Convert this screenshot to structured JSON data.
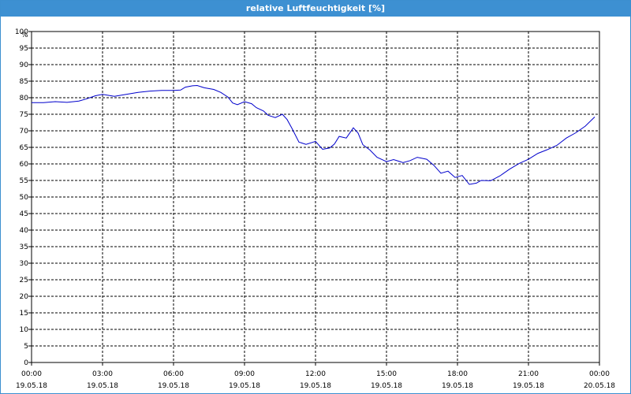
{
  "window": {
    "title": "relative Luftfeuchtigkeit [%]"
  },
  "chart_data": {
    "type": "line",
    "title": "relative Luftfeuchtigkeit [%]",
    "ylabel": "%",
    "xlabel": "",
    "ylim": [
      0,
      100
    ],
    "xlim": [
      0,
      24
    ],
    "y_ticks": [
      0,
      5,
      10,
      15,
      20,
      25,
      30,
      35,
      40,
      45,
      50,
      55,
      60,
      65,
      70,
      75,
      80,
      85,
      90,
      95,
      100
    ],
    "x_ticks": [
      {
        "x": 0,
        "time": "00:00",
        "date": "19.05.18"
      },
      {
        "x": 3,
        "time": "03:00",
        "date": "19.05.18"
      },
      {
        "x": 6,
        "time": "06:00",
        "date": "19.05.18"
      },
      {
        "x": 9,
        "time": "09:00",
        "date": "19.05.18"
      },
      {
        "x": 12,
        "time": "12:00",
        "date": "19.05.18"
      },
      {
        "x": 15,
        "time": "15:00",
        "date": "19.05.18"
      },
      {
        "x": 18,
        "time": "18:00",
        "date": "19.05.18"
      },
      {
        "x": 21,
        "time": "21:00",
        "date": "19.05.18"
      },
      {
        "x": 24,
        "time": "00:00",
        "date": "20.05.18"
      }
    ],
    "grid": true,
    "line_color": "#0000cc",
    "series": [
      {
        "x": [
          0,
          0.5,
          1,
          1.5,
          2,
          2.3,
          2.7,
          3,
          3.5,
          4,
          4.5,
          5,
          5.5,
          6,
          6.3,
          6.5,
          6.8,
          7,
          7.3,
          7.7,
          8,
          8.3,
          8.5,
          8.7,
          9,
          9.3,
          9.5,
          9.8,
          10,
          10.3,
          10.6,
          10.8,
          11,
          11.3,
          11.6,
          12,
          12.3,
          12.6,
          12.8,
          13,
          13.3,
          13.6,
          13.8,
          14,
          14.3,
          14.6,
          15,
          15.3,
          15.7,
          16,
          16.3,
          16.7,
          17,
          17.3,
          17.6,
          17.9,
          18.2,
          18.5,
          18.8,
          19,
          19.4,
          19.8,
          20.2,
          20.6,
          21,
          21.4,
          21.8,
          22.2,
          22.6,
          23,
          23.4,
          23.8
        ],
        "y": [
          78.5,
          78.5,
          78.8,
          78.6,
          79,
          79.6,
          80.6,
          81,
          80.4,
          81,
          81.6,
          82,
          82.2,
          82.2,
          82.3,
          83.2,
          83.6,
          83.7,
          83,
          82.5,
          81.6,
          80.2,
          78.4,
          77.9,
          78.8,
          78.2,
          77,
          76,
          74.7,
          74,
          75,
          73.4,
          70.8,
          66.6,
          65.9,
          66.8,
          64.4,
          64.8,
          66,
          68.3,
          67.8,
          70.9,
          69.3,
          65.8,
          64.2,
          62,
          60.7,
          61.3,
          60.4,
          61,
          62,
          61.4,
          59.6,
          57.2,
          57.8,
          55.9,
          56.5,
          53.8,
          54.2,
          55,
          54.9,
          56.4,
          58.4,
          60.1,
          61.4,
          63.2,
          64.3,
          65.6,
          67.8,
          69.4,
          71.4,
          74.2
        ]
      }
    ]
  }
}
